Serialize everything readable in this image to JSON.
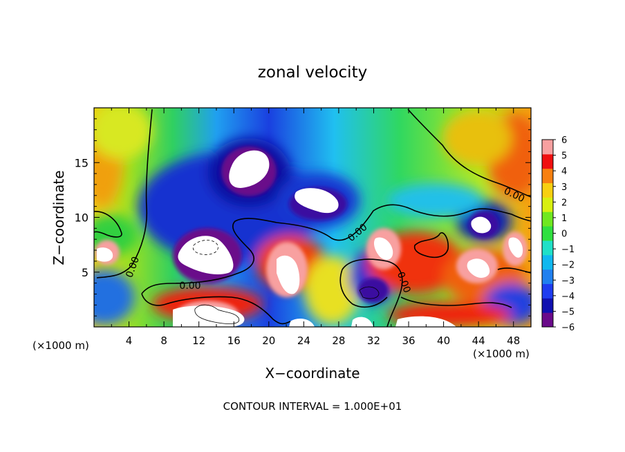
{
  "chart_data": {
    "type": "heatmap",
    "title": "zonal velocity",
    "xlabel": "X−coordinate",
    "ylabel": "Z−coordinate",
    "x_unit_left": "(×1000 m)",
    "x_unit_right": "(×1000 m)",
    "footer": "CONTOUR INTERVAL = 1.000E+01",
    "xlim": [
      0,
      50
    ],
    "ylim": [
      0,
      20
    ],
    "x_ticks": [
      4,
      8,
      12,
      16,
      20,
      24,
      28,
      32,
      36,
      40,
      44,
      48
    ],
    "y_ticks": [
      5,
      10,
      15
    ],
    "color_scale": {
      "min": -6,
      "max": 6,
      "ticks": [
        6,
        5,
        4,
        3,
        2,
        1,
        0,
        -1,
        -2,
        -3,
        -4,
        -5,
        -6
      ],
      "colors": [
        "#6a0a8a",
        "#1010b0",
        "#1e3cf0",
        "#2080f0",
        "#10b8f0",
        "#20e0c8",
        "#30e040",
        "#70e820",
        "#d8f010",
        "#f8d010",
        "#f88010",
        "#f01010",
        "#f8a0a0"
      ]
    },
    "contour_labels": [
      "0.00",
      "0.00",
      "0.00",
      "0.00",
      "0.00"
    ],
    "grid": false
  }
}
